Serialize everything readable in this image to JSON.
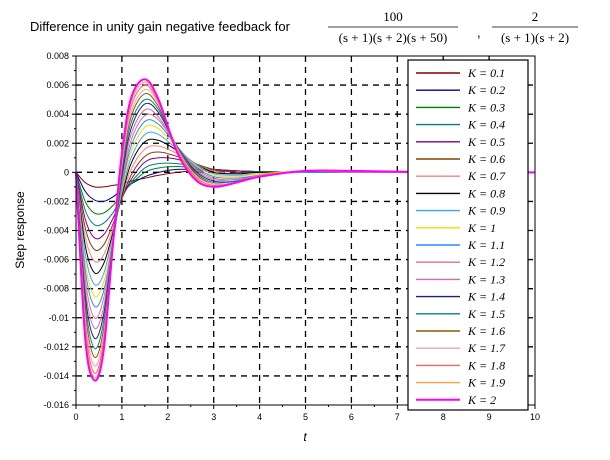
{
  "chart_data": {
    "type": "line",
    "title": {
      "prefix": "Difference in unity gain negative feedback for",
      "frac1_num": "100",
      "frac1_den": "(s + 1)(s + 2)(s + 50)",
      "separator": ",",
      "frac2_num": "2",
      "frac2_den": "(s + 1)(s + 2)"
    },
    "xlabel": "t",
    "ylabel": "Step response",
    "xlim": [
      0,
      10
    ],
    "ylim": [
      -0.016,
      0.008
    ],
    "xticks": [
      0,
      1,
      2,
      3,
      4,
      5,
      6,
      7,
      8,
      9,
      10
    ],
    "xtick_labels": [
      "0",
      "1",
      "2",
      "3",
      "4",
      "5",
      "6",
      "7",
      "8",
      "9",
      "10"
    ],
    "yticks": [
      0.008,
      0.006,
      0.004,
      0.002,
      0,
      -0.002,
      -0.004,
      -0.006,
      -0.008,
      -0.01,
      -0.012,
      -0.014,
      -0.016
    ],
    "ytick_labels": [
      "0.008",
      "0.006",
      "0.004",
      "0.002",
      "0",
      "-0.002",
      "-0.004",
      "-0.006",
      "-0.008",
      "-0.01",
      "-0.012",
      "-0.014",
      "-0.016"
    ],
    "grid": true,
    "legend_position": "right",
    "series": [
      {
        "name": "K = 0.1",
        "color": "#800000",
        "x": [
          0,
          0.2,
          0.4,
          0.6,
          0.8,
          1.0,
          1.2,
          1.5,
          1.8,
          2.2,
          2.6,
          3.0,
          3.5,
          4,
          5,
          6,
          8,
          10
        ],
        "y": [
          0,
          -0.0007,
          -0.001,
          -0.001,
          -0.0009,
          -0.0008,
          -0.0006,
          -0.0004,
          -0.0002,
          0,
          0.0001,
          0.0001,
          0.0001,
          5e-05,
          0,
          0,
          0,
          0
        ]
      },
      {
        "name": "K = 0.2",
        "color": "#0000a0",
        "x": [
          0,
          0.2,
          0.4,
          0.6,
          0.8,
          1.0,
          1.2,
          1.5,
          1.8,
          2.2,
          2.6,
          3.0,
          3.5,
          4,
          5,
          6,
          8,
          10
        ],
        "y": [
          0,
          -0.0013,
          -0.0019,
          -0.002,
          -0.0017,
          -0.0012,
          -0.0008,
          -0.0003,
          0,
          0.0002,
          0.0002,
          0.0002,
          0.0001,
          5e-05,
          0,
          0,
          0,
          0
        ]
      },
      {
        "name": "K = 0.3",
        "color": "#008000",
        "x": [
          0,
          0.2,
          0.4,
          0.6,
          0.8,
          1.0,
          1.2,
          1.5,
          1.8,
          2.2,
          2.6,
          3.0,
          3.5,
          4,
          5,
          6,
          8,
          10
        ],
        "y": [
          0,
          -0.002,
          -0.0028,
          -0.0028,
          -0.0023,
          -0.0015,
          -0.0008,
          0,
          0.0003,
          0.0004,
          0.0003,
          0.0002,
          0.0001,
          5e-05,
          0,
          0,
          0,
          0
        ]
      },
      {
        "name": "K = 0.4",
        "color": "#008080",
        "x": [
          0,
          0.2,
          0.4,
          0.6,
          0.8,
          1.0,
          1.2,
          1.5,
          1.8,
          2.2,
          2.6,
          3.0,
          3.5,
          4,
          5,
          6,
          8,
          10
        ],
        "y": [
          0,
          -0.0026,
          -0.0036,
          -0.0035,
          -0.0028,
          -0.0017,
          -0.0007,
          0.0003,
          0.0006,
          0.0006,
          0.0004,
          0.0002,
          0.0001,
          5e-05,
          0,
          0,
          0,
          0
        ]
      },
      {
        "name": "K = 0.5",
        "color": "#800080",
        "x": [
          0,
          0.2,
          0.4,
          0.6,
          0.8,
          1.0,
          1.2,
          1.5,
          1.8,
          2.2,
          2.6,
          3.0,
          3.5,
          4,
          5,
          6,
          8,
          10
        ],
        "y": [
          0,
          -0.0032,
          -0.0045,
          -0.0043,
          -0.0032,
          -0.0018,
          -0.0005,
          0.0007,
          0.001,
          0.0009,
          0.0005,
          0.0002,
          0.0001,
          0,
          0,
          0,
          0,
          0
        ]
      },
      {
        "name": "K = 0.6",
        "color": "#804000",
        "x": [
          0,
          0.2,
          0.4,
          0.6,
          0.8,
          1.0,
          1.2,
          1.5,
          1.8,
          2.2,
          2.6,
          3.0,
          3.5,
          4,
          5,
          6,
          8,
          10
        ],
        "y": [
          0,
          -0.0038,
          -0.0053,
          -0.005,
          -0.0036,
          -0.0018,
          -0.0002,
          0.0011,
          0.0014,
          0.0011,
          0.0006,
          0.0002,
          0,
          0,
          0,
          0,
          0,
          0
        ]
      },
      {
        "name": "K = 0.7",
        "color": "#ff8080",
        "x": [
          0,
          0.2,
          0.4,
          0.6,
          0.8,
          1.0,
          1.2,
          1.5,
          1.8,
          2.2,
          2.6,
          3.0,
          3.5,
          4,
          5,
          6,
          8,
          10
        ],
        "y": [
          0,
          -0.0044,
          -0.0061,
          -0.0057,
          -0.0039,
          -0.0017,
          0.0002,
          0.0016,
          0.0018,
          0.0013,
          0.0006,
          0.0001,
          -0.0001,
          0,
          0,
          0,
          0,
          0
        ]
      },
      {
        "name": "K = 0.8",
        "color": "#000000",
        "x": [
          0,
          0.2,
          0.4,
          0.6,
          0.8,
          1.0,
          1.2,
          1.5,
          1.8,
          2.2,
          2.6,
          3.0,
          3.5,
          4,
          5,
          6,
          8,
          10
        ],
        "y": [
          0,
          -0.005,
          -0.0069,
          -0.0063,
          -0.0042,
          -0.0016,
          0.0006,
          0.0021,
          0.0022,
          0.0015,
          0.0006,
          0,
          -0.0001,
          0,
          0,
          0,
          0,
          0
        ]
      },
      {
        "name": "K = 0.9",
        "color": "#40a0ff",
        "x": [
          0,
          0.2,
          0.4,
          0.6,
          0.8,
          1.0,
          1.2,
          1.5,
          1.8,
          2.2,
          2.6,
          3.0,
          3.5,
          4,
          5,
          6,
          8,
          10
        ],
        "y": [
          0,
          -0.0056,
          -0.0077,
          -0.007,
          -0.0044,
          -0.0014,
          0.001,
          0.0026,
          0.0026,
          0.0016,
          0.0006,
          -0.0001,
          -0.0002,
          -0.0001,
          0,
          0,
          0,
          0
        ]
      },
      {
        "name": "K = 1",
        "color": "#ffd700",
        "x": [
          0,
          0.2,
          0.4,
          0.6,
          0.8,
          1.0,
          1.2,
          1.5,
          1.8,
          2.2,
          2.6,
          3.0,
          3.5,
          4,
          5,
          6,
          8,
          10
        ],
        "y": [
          0,
          -0.0062,
          -0.0085,
          -0.0076,
          -0.0046,
          -0.0012,
          0.0014,
          0.0031,
          0.003,
          0.0017,
          0.0005,
          -0.0002,
          -0.0003,
          -0.0001,
          0.0001,
          0,
          0,
          0
        ]
      },
      {
        "name": "K = 1.1",
        "color": "#1e90ff",
        "x": [
          0,
          0.2,
          0.4,
          0.6,
          0.8,
          1.0,
          1.2,
          1.5,
          1.8,
          2.2,
          2.6,
          3.0,
          3.5,
          4,
          5,
          6,
          8,
          10
        ],
        "y": [
          0,
          -0.0067,
          -0.0092,
          -0.0082,
          -0.0048,
          -0.001,
          0.0018,
          0.0035,
          0.0033,
          0.0018,
          0.0004,
          -0.0003,
          -0.0004,
          -0.0002,
          0.0001,
          0,
          0,
          0
        ]
      },
      {
        "name": "K = 1.2",
        "color": "#db7093",
        "x": [
          0,
          0.2,
          0.4,
          0.6,
          0.8,
          1.0,
          1.2,
          1.5,
          1.8,
          2.2,
          2.6,
          3.0,
          3.5,
          4,
          5,
          6,
          8,
          10
        ],
        "y": [
          0,
          -0.0073,
          -0.01,
          -0.0087,
          -0.0049,
          -0.0008,
          0.0022,
          0.0039,
          0.0036,
          0.0018,
          0.0003,
          -0.0004,
          -0.0005,
          -0.0002,
          0.0001,
          0,
          0,
          0
        ]
      },
      {
        "name": "K = 1.3",
        "color": "#e066a0",
        "x": [
          0,
          0.2,
          0.4,
          0.6,
          0.8,
          1.0,
          1.2,
          1.5,
          1.8,
          2.2,
          2.6,
          3.0,
          3.5,
          4,
          5,
          6,
          8,
          10
        ],
        "y": [
          0,
          -0.0079,
          -0.0107,
          -0.0093,
          -0.005,
          -0.0005,
          0.0026,
          0.0043,
          0.0038,
          0.0018,
          0.0002,
          -0.0005,
          -0.0005,
          -0.0003,
          0.0001,
          0.0001,
          0,
          0
        ]
      },
      {
        "name": "K = 1.4",
        "color": "#1a237e",
        "x": [
          0,
          0.2,
          0.4,
          0.6,
          0.8,
          1.0,
          1.2,
          1.5,
          1.8,
          2.2,
          2.6,
          3.0,
          3.5,
          4,
          5,
          6,
          8,
          10
        ],
        "y": [
          0,
          -0.0084,
          -0.0114,
          -0.0098,
          -0.0051,
          -0.0003,
          0.003,
          0.0047,
          0.0041,
          0.0018,
          0.0001,
          -0.0006,
          -0.0006,
          -0.0003,
          0.0001,
          0.0001,
          0,
          0
        ]
      },
      {
        "name": "K = 1.5",
        "color": "#00838f",
        "x": [
          0,
          0.2,
          0.4,
          0.6,
          0.8,
          1.0,
          1.2,
          1.5,
          1.8,
          2.2,
          2.6,
          3.0,
          3.5,
          4,
          5,
          6,
          8,
          10
        ],
        "y": [
          0,
          -0.0089,
          -0.0121,
          -0.0103,
          -0.0052,
          0,
          0.0034,
          0.005,
          0.0043,
          0.0018,
          0,
          -0.0007,
          -0.0006,
          -0.0003,
          0.0001,
          0.0001,
          0,
          0
        ]
      },
      {
        "name": "K = 1.6",
        "color": "#8b5a00",
        "x": [
          0,
          0.2,
          0.4,
          0.6,
          0.8,
          1.0,
          1.2,
          1.5,
          1.8,
          2.2,
          2.6,
          3.0,
          3.5,
          4,
          5,
          6,
          8,
          10
        ],
        "y": [
          0,
          -0.0094,
          -0.0127,
          -0.0108,
          -0.0052,
          0.0003,
          0.0038,
          0.0054,
          0.0045,
          0.0017,
          -0.0001,
          -0.0008,
          -0.0007,
          -0.0003,
          0.0001,
          0.0001,
          0,
          0
        ]
      },
      {
        "name": "K = 1.7",
        "color": "#f4a0b0",
        "x": [
          0,
          0.2,
          0.4,
          0.6,
          0.8,
          1.0,
          1.2,
          1.5,
          1.8,
          2.2,
          2.6,
          3.0,
          3.5,
          4,
          5,
          6,
          8,
          10
        ],
        "y": [
          0,
          -0.0099,
          -0.0133,
          -0.0112,
          -0.0052,
          0.0005,
          0.0041,
          0.0057,
          0.0047,
          0.0017,
          -0.0002,
          -0.0008,
          -0.0007,
          -0.0003,
          0.0001,
          0.0001,
          0,
          0
        ]
      },
      {
        "name": "K = 1.8",
        "color": "#ff6060",
        "x": [
          0,
          0.2,
          0.4,
          0.6,
          0.8,
          1.0,
          1.2,
          1.5,
          1.8,
          2.2,
          2.6,
          3.0,
          3.5,
          4,
          5,
          6,
          8,
          10
        ],
        "y": [
          0,
          -0.0104,
          -0.0138,
          -0.0116,
          -0.0052,
          0.0008,
          0.0045,
          0.006,
          0.0048,
          0.0016,
          -0.0003,
          -0.0009,
          -0.0007,
          -0.0003,
          0.0001,
          0.0001,
          0,
          0
        ]
      },
      {
        "name": "K = 1.9",
        "color": "#ffa040",
        "x": [
          0,
          0.2,
          0.4,
          0.6,
          0.8,
          1.0,
          1.2,
          1.5,
          1.8,
          2.2,
          2.6,
          3.0,
          3.5,
          4,
          5,
          6,
          8,
          10
        ],
        "y": [
          0,
          -0.0109,
          -0.0141,
          -0.012,
          -0.0052,
          0.001,
          0.0048,
          0.0062,
          0.0049,
          0.0015,
          -0.0004,
          -0.001,
          -0.0007,
          -0.0003,
          0.0001,
          0.0001,
          0,
          0
        ]
      },
      {
        "name": "K = 2",
        "color": "#ff00ff",
        "x": [
          0,
          0.2,
          0.4,
          0.6,
          0.8,
          1.0,
          1.2,
          1.5,
          1.8,
          2.2,
          2.6,
          3.0,
          3.5,
          4,
          5,
          6,
          8,
          10
        ],
        "y": [
          0,
          -0.0114,
          -0.0143,
          -0.0123,
          -0.0051,
          0.0013,
          0.0051,
          0.0064,
          0.005,
          0.0014,
          -0.0005,
          -0.001,
          -0.0007,
          -0.0003,
          0.0001,
          0.0001,
          0,
          0
        ]
      }
    ]
  }
}
